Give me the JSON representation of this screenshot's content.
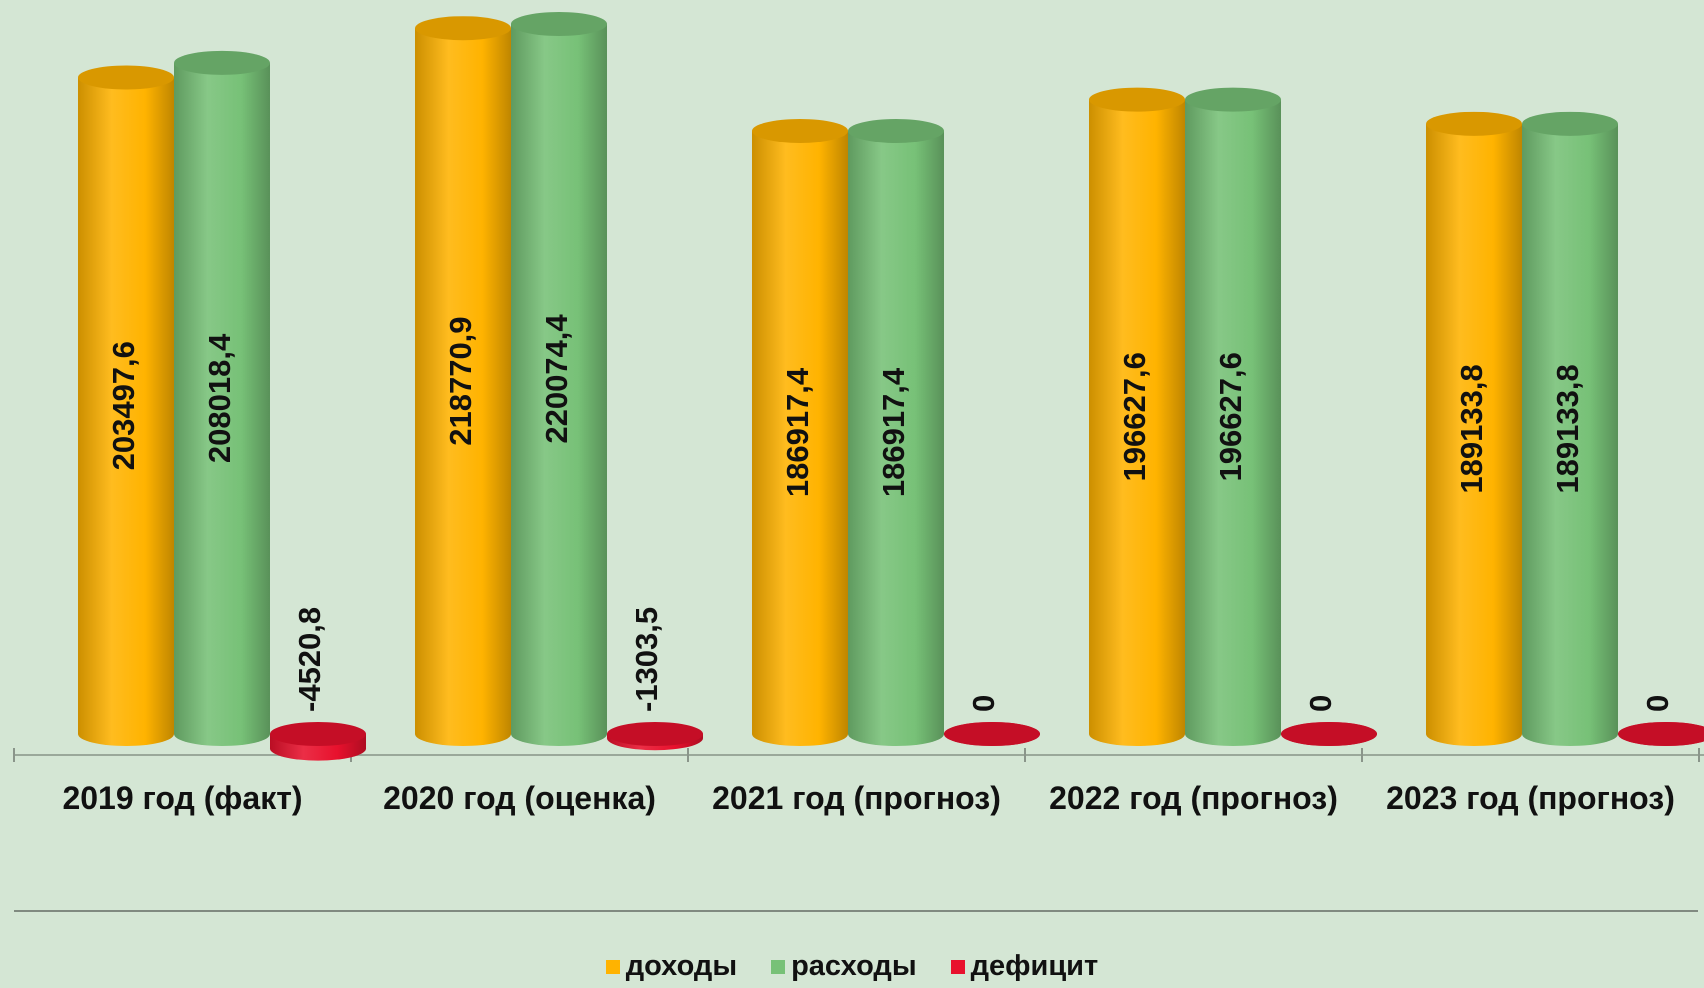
{
  "chart_data": {
    "type": "bar",
    "categories": [
      "2019 год (факт)",
      "2020 год (оценка)",
      "2021 год (прогноз)",
      "2022 год (прогноз)",
      "2023 год (прогноз)"
    ],
    "series": [
      {
        "name": "доходы",
        "color": "#ffb300",
        "values": [
          203497.6,
          218770.9,
          186917.4,
          196627.6,
          189133.8
        ],
        "value_labels": [
          "203497,6",
          "218770,9",
          "186917,4",
          "196627,6",
          "189133,8"
        ]
      },
      {
        "name": "расходы",
        "color": "#77c177",
        "values": [
          208018.4,
          220074.4,
          186917.4,
          196627.6,
          189133.8
        ],
        "value_labels": [
          "208018,4",
          "220074,4",
          "186917,4",
          "196627,6",
          "189133,8"
        ]
      },
      {
        "name": "дефицит",
        "color": "#e8112d",
        "values": [
          -4520.8,
          -1303.5,
          0,
          0,
          0
        ],
        "value_labels": [
          "-4520,8",
          "-1303,5",
          "0",
          "0",
          "0"
        ]
      }
    ]
  }
}
